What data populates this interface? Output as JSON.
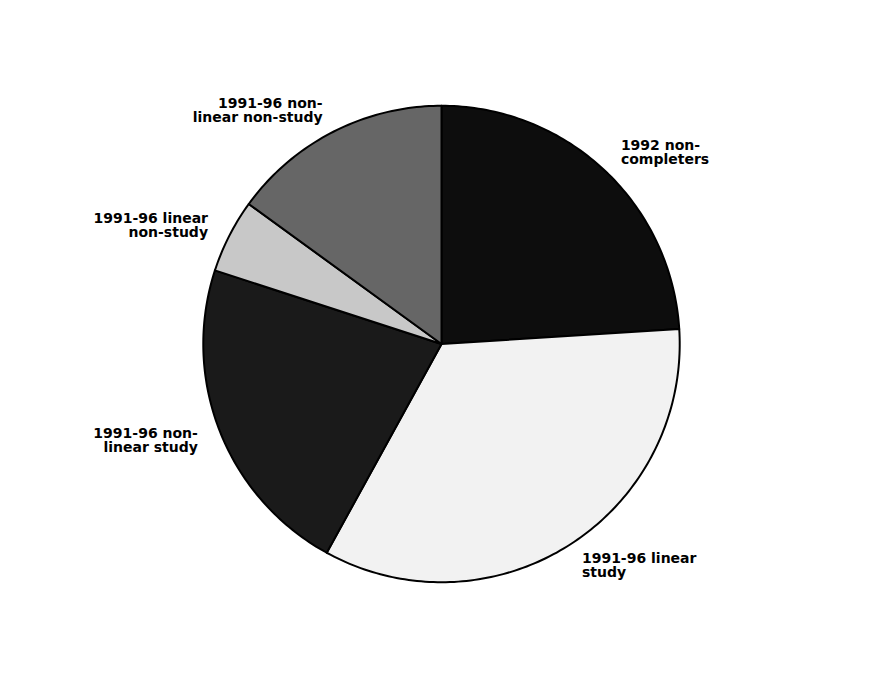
{
  "chart_data": {
    "type": "pie",
    "categories": [
      "1992 non-\ncompleters",
      "1991-96 linear\nstudy",
      "1991-96 non-\nlinear study",
      "1991-96 linear\nnon-study",
      "1991-96 non-\nlinear non-study"
    ],
    "values": [
      24,
      34,
      22,
      5,
      15
    ],
    "colors": [
      "#0d0d0d",
      "#f2f2f2",
      "#1a1a1a",
      "#c8c8c8",
      "#666666"
    ]
  }
}
